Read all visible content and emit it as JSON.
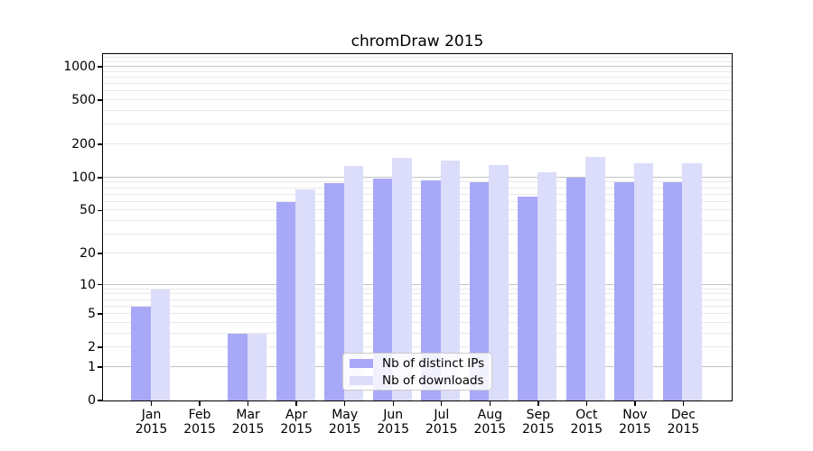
{
  "chart_data": {
    "type": "bar",
    "title": "chromDraw 2015",
    "categories": [
      "Jan",
      "Feb",
      "Mar",
      "Apr",
      "May",
      "Jun",
      "Jul",
      "Aug",
      "Sep",
      "Oct",
      "Nov",
      "Dec"
    ],
    "year_label": "2015",
    "series": [
      {
        "name": "Nb of distinct IPs",
        "color": "#a8a8f8",
        "values": [
          6,
          0,
          3,
          60,
          89,
          98,
          95,
          90,
          67,
          100,
          90,
          91
        ]
      },
      {
        "name": "Nb of downloads",
        "color": "#dcdcfb",
        "values": [
          9,
          0,
          3,
          78,
          127,
          150,
          143,
          130,
          112,
          155,
          135,
          136
        ]
      }
    ],
    "yticks": [
      0,
      1,
      2,
      5,
      10,
      20,
      50,
      100,
      200,
      500,
      1000
    ],
    "major_gridlines": [
      1,
      10,
      100,
      1000
    ],
    "scale": "log10(1+y)",
    "ylim": [
      0,
      1300
    ],
    "xlabel": "",
    "ylabel": "",
    "grid": true,
    "legend_position": "lower center",
    "colors": {
      "major_grid": "#c3c3c3",
      "minor_grid": "#e9e9e9",
      "axis": "#000000",
      "background": "#ffffff"
    }
  }
}
